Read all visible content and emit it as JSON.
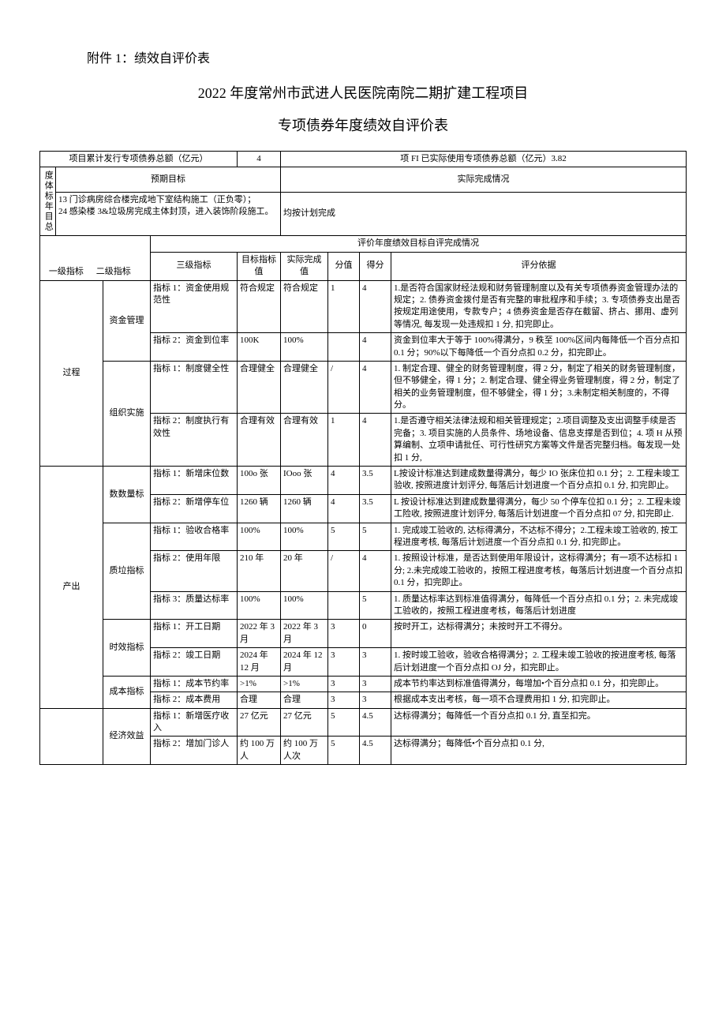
{
  "attachment_label": "附件 1：绩效自评价表",
  "title_main": "2022 年度常州市武进人民医院南院二期扩建工程项目",
  "title_sub": "专项债券年度绩效自评价表",
  "header": {
    "issued_label": "项目累计发行专项债券总额（亿元）",
    "issued_value": "4",
    "used_label": "项 FI 已实际使用专项债券总额（亿元）3.82"
  },
  "annual_target": {
    "row_label": "度体标年目总",
    "expected_label": "预期目标",
    "actual_label": "实际完成情况",
    "expected_text": "13 门诊病房综合楼完成地下室结构施工（正负零）；\n24 感染楼 3&垃圾房完成主体封顶，进入装饰阶段施工。",
    "actual_text": "均按计划完成"
  },
  "eval_header": "评价年度绩效目标自评完成情况",
  "columns": {
    "l1": "一级指标",
    "l2": "二级指标",
    "l3": "三级指标",
    "target": "目标指标值",
    "actual": "实际完成值",
    "score": "分值",
    "got": "得分",
    "basis": "评分依据"
  },
  "rows": [
    {
      "l1": "过程",
      "l1_rowspan": 4,
      "l2": "资金管理",
      "l2_rowspan": 2,
      "l3": "指标 1：资金使用规范性",
      "target": "符合规定",
      "actual": "符合规定",
      "score": "1",
      "got": "4",
      "basis": "1.是否符合国家财经法规和财务管理制度以及有关专项债券资金管理办法的规定；2. 债券资金拨付是否有完整的审批程序和手续；3. 专项债券支出是否按规定用途使用，专款专户；4 债券资金是否存在截留、挤占、挪用、虚列等情况, 每发现一处违规扣 1 分, 扣完即止。"
    },
    {
      "l3": "指标 2：资金到位率",
      "target": "100K",
      "actual": "100%",
      "score": "",
      "got": "4",
      "basis": "资金到位率大于等于 100%得满分，9 秩至 100%区间内每降低一个百分点扣 0.1 分；90%以下每降低一个百分点扣 0.2 分，扣完即止。"
    },
    {
      "l2": "组织实施",
      "l2_rowspan": 2,
      "l3": "指标 1：制度健全性",
      "target": "合理健全",
      "actual": "合理健全",
      "score": "/",
      "got": "4",
      "basis": "1. 制定合理、健全的财务管理制度，得 2 分，制定了相关的财务管理制度，但不够健全，得 1 分；2. 制定合理、健全得业务管理制度，得 2 分，制定了相关的业务管理制度，但不够健全，得 1 分；3.未制定相关制度的，不得分。"
    },
    {
      "l3": "指标 2：制度执行有效性",
      "target": "合理有效",
      "actual": "合理有效",
      "score": "1",
      "got": "4",
      "basis": "1.是否遵守相关法律法规和相关管理规定；2.项目调整及支出调整手续是否完备；3. 项目实施的人员条件、场地设备、信息支撑是否到位；4. 项 H 从预算编制、立项申请批任、可行性研究方案等文件是否完整归档。每发现一处扣 1 分,"
    },
    {
      "l1": "产出",
      "l1_rowspan": 9,
      "l2": "数数量标",
      "l2_rowspan": 2,
      "l3": "指标 1：新增床位数",
      "target": "100o 张",
      "actual": "IOoo 张",
      "score": "4",
      "got": "3.5",
      "basis": "L按设计标准达到建成数量得满分，每少 IO 张床位扣 0.1 分；2. 工程未竣工验收, 按照进度计划评分, 每落后计划进度一个百分点扣 0.1 分, 扣完即止。"
    },
    {
      "l3": "指标 2：新增停车位",
      "target": "1260 辆",
      "actual": "1260 辆",
      "score": "4",
      "got": "3.5",
      "basis": "L 按设计标准达到建成数量得满分，每少 50 个停车位扣 0.1 分；2. 工程未竣工险收, 按照进度计划评分, 每落后计划进度一个百分点扣 07 分, 扣完即止."
    },
    {
      "l2": "质垃指标",
      "l2_rowspan": 3,
      "l3": "指标 1：验收合格率",
      "target": "100%",
      "actual": "100%",
      "score": "5",
      "got": "5",
      "basis": "1. 完成竣工验收的, 达标得满分，不达标不得分；2.工程未竣工验收的, 按工程进度考核, 每落后计划进度一个百分点扣 0.1 分, 扣完即止。"
    },
    {
      "l3": "指标 2：使用年限",
      "target": "210 年",
      "actual": "20 年",
      "score": "/",
      "got": "4",
      "basis": "1. 按照设计标准，是否达到使用年限设计，这标得满分；有一项不达标扣 1 分; 2.未完成竣工验收的，按照工程进度考核，每落后计划进度一个百分点扣 0.1 分，扣完即止。"
    },
    {
      "l3": " 指标 3：质量达标率",
      "target": "100%",
      "actual": "100%",
      "score": "",
      "got": "5",
      "basis": "1. 质量达标率达到标准值得满分，每降低一个百分点扣 0.1 分；2. 未完成竣工验收的，按照工程进度考核，每落后计划进度"
    },
    {
      "l2": "时效指标",
      "l2_rowspan": 2,
      "l3": "指标 1：开工日期",
      "target": "2022 年 3 月",
      "actual": "2022 年 3 月",
      "score": "3",
      "got": "0",
      "basis": "按时开工，达标得满分；未按时开工不得分。"
    },
    {
      "l3": "指标 2：竣工日期",
      "target": "2024 年 12 月",
      "actual": "2024 年 12 月",
      "score": "3",
      "got": "3",
      "basis": "1. 按时竣工验收，验收合格得满分；2. 工程未竣工验收的按进度考核, 每落后计划进度一个百分点扣 OJ 分，扣完即止。"
    },
    {
      "l2": "成本指标",
      "l2_rowspan": 2,
      "l3": "指标 1：成本节约率",
      "target": ">1%",
      "actual": ">1%",
      "score": "3",
      "got": "3",
      "basis": "成本节约率达到标准值得满分，每增加•个百分点扣 0.1 分，扣完即止。"
    },
    {
      "l3": "指标 2：成本费用",
      "target": "合理",
      "actual": "合理",
      "score": "3",
      "got": "3",
      "basis": "根据成本支出考核，每一项不合理费用扣 1 分, 扣完即止。"
    },
    {
      "l1": "",
      "l1_rowspan": 2,
      "l2": "经济效益",
      "l2_rowspan": 2,
      "l3": "指标 1：新增医疗收入",
      "target": "27 亿元",
      "actual": "27 亿元",
      "score": "5",
      "got": "4.5",
      "basis": "达标得满分；每降低一个百分点扣 0.1 分, 直至扣完。"
    },
    {
      "l3": "指标 2：增加门诊人",
      "target": "约 100 万 人",
      "actual": "约 100 万人次",
      "score": "5",
      "got": "4.5",
      "basis": "达标得满分；每降低•个百分点扣 0.1 分,"
    }
  ]
}
